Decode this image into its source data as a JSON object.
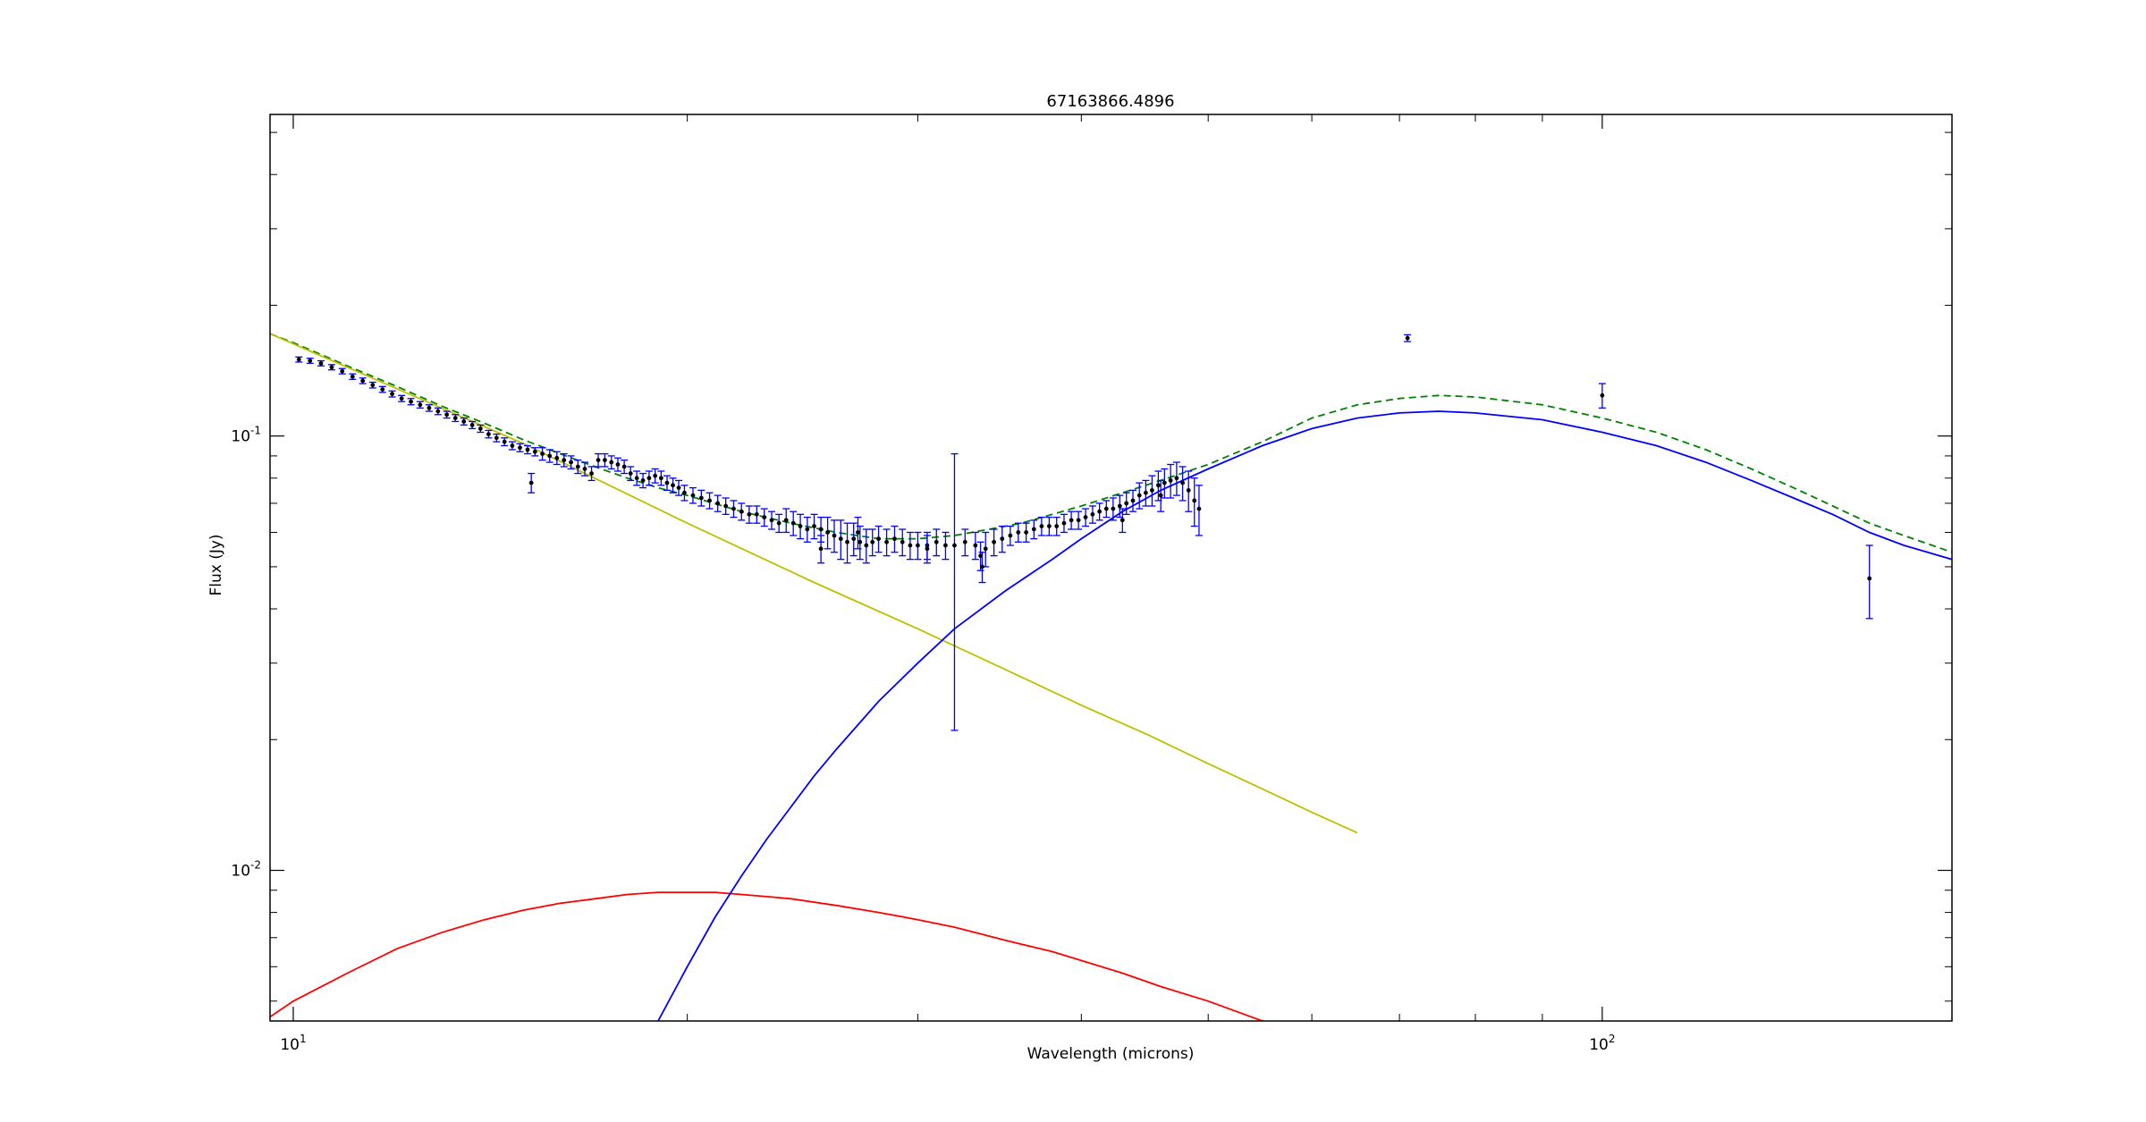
{
  "chart_data": {
    "type": "scatter",
    "title": "67163866.4896",
    "xlabel": "Wavelength (microns)",
    "ylabel": "Flux (Jy)",
    "xscale": "log",
    "yscale": "log",
    "xlim": [
      9.6,
      185
    ],
    "ylim": [
      0.0045,
      0.55
    ],
    "grid": false,
    "x_ticks": [
      {
        "value": 10,
        "label": "10",
        "exp": "1"
      },
      {
        "value": 100,
        "label": "10",
        "exp": "2"
      }
    ],
    "y_ticks": [
      {
        "value": 0.01,
        "label": "10",
        "exp": "-2"
      },
      {
        "value": 0.1,
        "label": "10",
        "exp": "-1"
      }
    ],
    "colors": {
      "data": "#000000",
      "errorbar": "#0000ff",
      "total_model": "#008000",
      "powerlaw": "#bfbf00",
      "warm_component": "#ff0000",
      "cold_component": "#0000ff"
    },
    "series": [
      {
        "kind": "points",
        "points": [
          [
            10.1,
            0.15,
            0.002
          ],
          [
            10.3,
            0.149,
            0.002
          ],
          [
            10.5,
            0.147,
            0.002
          ],
          [
            10.7,
            0.144,
            0.002
          ],
          [
            10.9,
            0.141,
            0.002
          ],
          [
            11.1,
            0.137,
            0.002
          ],
          [
            11.3,
            0.134,
            0.002
          ],
          [
            11.5,
            0.131,
            0.002
          ],
          [
            11.7,
            0.128,
            0.002
          ],
          [
            11.9,
            0.125,
            0.002
          ],
          [
            12.1,
            0.122,
            0.002
          ],
          [
            12.3,
            0.12,
            0.002
          ],
          [
            12.5,
            0.118,
            0.002
          ],
          [
            12.7,
            0.116,
            0.002
          ],
          [
            12.9,
            0.114,
            0.002
          ],
          [
            13.1,
            0.112,
            0.002
          ],
          [
            13.3,
            0.11,
            0.002
          ],
          [
            13.5,
            0.108,
            0.002
          ],
          [
            13.7,
            0.106,
            0.002
          ],
          [
            13.9,
            0.104,
            0.002
          ],
          [
            14.1,
            0.101,
            0.002
          ],
          [
            14.3,
            0.099,
            0.002
          ],
          [
            14.5,
            0.097,
            0.002
          ],
          [
            14.7,
            0.095,
            0.002
          ],
          [
            14.9,
            0.094,
            0.002
          ],
          [
            15.1,
            0.093,
            0.002
          ],
          [
            15.3,
            0.092,
            0.002
          ],
          [
            15.5,
            0.091,
            0.003
          ],
          [
            15.7,
            0.09,
            0.003
          ],
          [
            15.9,
            0.089,
            0.003
          ],
          [
            16.1,
            0.088,
            0.003
          ],
          [
            16.3,
            0.087,
            0.003
          ],
          [
            16.5,
            0.085,
            0.003
          ],
          [
            16.7,
            0.084,
            0.003
          ],
          [
            16.9,
            0.082,
            0.003
          ],
          [
            17.1,
            0.088,
            0.003
          ],
          [
            17.3,
            0.088,
            0.003
          ],
          [
            17.5,
            0.087,
            0.003
          ],
          [
            17.7,
            0.086,
            0.003
          ],
          [
            17.9,
            0.085,
            0.003
          ],
          [
            18.1,
            0.082,
            0.003
          ],
          [
            18.3,
            0.08,
            0.003
          ],
          [
            18.5,
            0.079,
            0.003
          ],
          [
            18.7,
            0.08,
            0.003
          ],
          [
            18.9,
            0.081,
            0.003
          ],
          [
            19.1,
            0.08,
            0.003
          ],
          [
            19.3,
            0.078,
            0.003
          ],
          [
            19.5,
            0.077,
            0.003
          ],
          [
            19.7,
            0.076,
            0.003
          ],
          [
            19.9,
            0.074,
            0.003
          ],
          [
            20.2,
            0.073,
            0.003
          ],
          [
            20.5,
            0.072,
            0.003
          ],
          [
            20.8,
            0.071,
            0.003
          ],
          [
            21.1,
            0.07,
            0.003
          ],
          [
            21.4,
            0.069,
            0.003
          ],
          [
            21.7,
            0.068,
            0.003
          ],
          [
            22.0,
            0.067,
            0.003
          ],
          [
            22.3,
            0.066,
            0.003
          ],
          [
            22.6,
            0.066,
            0.003
          ],
          [
            22.9,
            0.065,
            0.003
          ],
          [
            23.2,
            0.064,
            0.003
          ],
          [
            23.5,
            0.063,
            0.003
          ],
          [
            23.8,
            0.064,
            0.004
          ],
          [
            24.1,
            0.063,
            0.004
          ],
          [
            24.4,
            0.062,
            0.004
          ],
          [
            24.7,
            0.061,
            0.004
          ],
          [
            25.0,
            0.062,
            0.004
          ],
          [
            25.3,
            0.061,
            0.004
          ],
          [
            25.6,
            0.06,
            0.005
          ],
          [
            25.9,
            0.059,
            0.005
          ],
          [
            26.2,
            0.058,
            0.006
          ],
          [
            26.5,
            0.057,
            0.006
          ],
          [
            26.8,
            0.058,
            0.005
          ],
          [
            27.1,
            0.057,
            0.005
          ],
          [
            27.4,
            0.056,
            0.005
          ],
          [
            27.7,
            0.057,
            0.004
          ],
          [
            28.0,
            0.058,
            0.004
          ],
          [
            28.4,
            0.057,
            0.004
          ],
          [
            28.8,
            0.058,
            0.004
          ],
          [
            29.2,
            0.057,
            0.004
          ],
          [
            29.6,
            0.056,
            0.004
          ],
          [
            30.0,
            0.056,
            0.004
          ],
          [
            30.5,
            0.056,
            0.004
          ],
          [
            31.0,
            0.057,
            0.004
          ],
          [
            31.5,
            0.056,
            0.004
          ],
          [
            32.0,
            0.056,
            0.035
          ],
          [
            32.6,
            0.057,
            0.004
          ],
          [
            33.2,
            0.056,
            0.004
          ],
          [
            33.8,
            0.055,
            0.005
          ],
          [
            34.3,
            0.057,
            0.004
          ],
          [
            34.8,
            0.058,
            0.004
          ],
          [
            35.3,
            0.059,
            0.003
          ],
          [
            35.8,
            0.06,
            0.003
          ],
          [
            36.3,
            0.06,
            0.003
          ],
          [
            36.8,
            0.061,
            0.003
          ],
          [
            37.3,
            0.062,
            0.003
          ],
          [
            37.8,
            0.062,
            0.003
          ],
          [
            38.3,
            0.062,
            0.003
          ],
          [
            38.8,
            0.063,
            0.003
          ],
          [
            39.3,
            0.064,
            0.003
          ],
          [
            39.8,
            0.064,
            0.003
          ],
          [
            40.3,
            0.065,
            0.003
          ],
          [
            40.8,
            0.066,
            0.003
          ],
          [
            41.3,
            0.067,
            0.003
          ],
          [
            41.8,
            0.068,
            0.003
          ],
          [
            42.3,
            0.068,
            0.004
          ],
          [
            42.8,
            0.069,
            0.004
          ],
          [
            43.3,
            0.07,
            0.004
          ],
          [
            43.8,
            0.071,
            0.004
          ],
          [
            44.3,
            0.073,
            0.005
          ],
          [
            44.8,
            0.074,
            0.005
          ],
          [
            45.3,
            0.075,
            0.006
          ],
          [
            45.8,
            0.077,
            0.006
          ],
          [
            46.3,
            0.078,
            0.006
          ],
          [
            46.8,
            0.079,
            0.007
          ],
          [
            47.3,
            0.08,
            0.007
          ],
          [
            47.8,
            0.078,
            0.007
          ],
          [
            48.3,
            0.075,
            0.008
          ],
          [
            48.8,
            0.071,
            0.009
          ],
          [
            49.2,
            0.068,
            0.009
          ],
          [
            25.3,
            0.055,
            0.004
          ],
          [
            27.0,
            0.06,
            0.005
          ],
          [
            30.5,
            0.055,
            0.004
          ],
          [
            33.5,
            0.053,
            0.004
          ],
          [
            15.2,
            0.078,
            0.004
          ],
          [
            33.6,
            0.05,
            0.004
          ],
          [
            43.0,
            0.064,
            0.004
          ],
          [
            46.0,
            0.073,
            0.006
          ],
          [
            71.0,
            0.168,
            0.003
          ],
          [
            100.0,
            0.124,
            0.008
          ],
          [
            160.0,
            0.047,
            0.009
          ]
        ]
      },
      {
        "kind": "line",
        "name": "",
        "role": "total_model",
        "dashed": true,
        "x": [
          9.6,
          10,
          11,
          12,
          13,
          14,
          15,
          16,
          17,
          18,
          19,
          20,
          22,
          24,
          26,
          28,
          30,
          32,
          34,
          36,
          38,
          40,
          43,
          46,
          50,
          55,
          60,
          65,
          70,
          75,
          80,
          90,
          100,
          110,
          120,
          130,
          140,
          150,
          160,
          170,
          185
        ],
        "y": [
          0.172,
          0.164,
          0.145,
          0.13,
          0.117,
          0.107,
          0.098,
          0.091,
          0.085,
          0.08,
          0.076,
          0.073,
          0.067,
          0.063,
          0.06,
          0.058,
          0.058,
          0.059,
          0.061,
          0.063,
          0.066,
          0.069,
          0.074,
          0.079,
          0.086,
          0.097,
          0.11,
          0.118,
          0.122,
          0.124,
          0.123,
          0.118,
          0.11,
          0.102,
          0.093,
          0.084,
          0.076,
          0.069,
          0.063,
          0.059,
          0.054
        ]
      },
      {
        "kind": "line",
        "role": "powerlaw",
        "x": [
          9.6,
          15,
          20,
          25,
          30,
          35,
          40,
          45,
          50,
          55,
          60,
          65
        ],
        "y": [
          0.172,
          0.096,
          0.063,
          0.046,
          0.036,
          0.029,
          0.024,
          0.0205,
          0.0176,
          0.0154,
          0.0136,
          0.0122
        ]
      },
      {
        "kind": "line",
        "role": "warm_component",
        "x": [
          9.6,
          10,
          11,
          12,
          13,
          14,
          15,
          16,
          17,
          18,
          19,
          20,
          21,
          22,
          23,
          24,
          26,
          28,
          30,
          32,
          35,
          38,
          40,
          43,
          46,
          50,
          55,
          60
        ],
        "y": [
          0.0046,
          0.005,
          0.0058,
          0.0066,
          0.0072,
          0.0077,
          0.0081,
          0.0084,
          0.0086,
          0.0088,
          0.0089,
          0.0089,
          0.0089,
          0.0088,
          0.0087,
          0.0086,
          0.0083,
          0.008,
          0.0077,
          0.0074,
          0.0069,
          0.0065,
          0.0062,
          0.0058,
          0.0054,
          0.005,
          0.0045,
          0.0041
        ]
      },
      {
        "kind": "line",
        "role": "cold_component",
        "x": [
          19,
          20,
          21,
          22,
          23,
          24,
          25,
          26,
          28,
          30,
          32,
          35,
          38,
          40,
          43,
          46,
          50,
          55,
          60,
          65,
          70,
          75,
          80,
          90,
          100,
          110,
          120,
          130,
          140,
          150,
          160,
          170,
          185
        ],
        "y": [
          0.0045,
          0.006,
          0.0078,
          0.0097,
          0.0118,
          0.014,
          0.0165,
          0.019,
          0.0245,
          0.03,
          0.036,
          0.044,
          0.052,
          0.058,
          0.067,
          0.075,
          0.084,
          0.095,
          0.104,
          0.11,
          0.113,
          0.114,
          0.113,
          0.109,
          0.102,
          0.095,
          0.087,
          0.079,
          0.072,
          0.066,
          0.06,
          0.056,
          0.052
        ]
      }
    ]
  }
}
